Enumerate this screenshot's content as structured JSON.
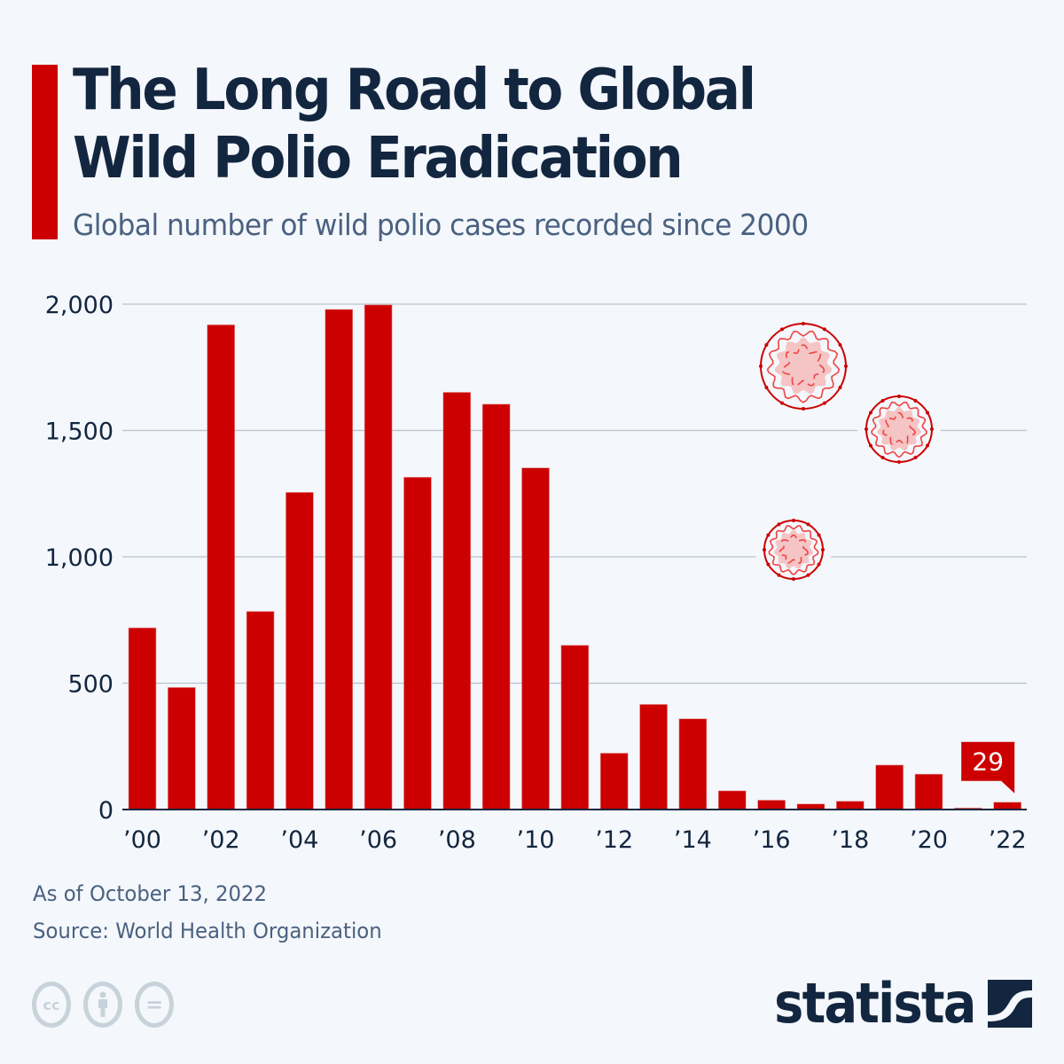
{
  "header": {
    "title_line1": "The Long Road to Global",
    "title_line2": "Wild Polio Eradication",
    "subtitle": "Global number of wild polio cases recorded since 2000"
  },
  "colors": {
    "accent": "#cc0000",
    "bar": "#cc0000",
    "text_dark": "#13263f",
    "text_muted": "#4a6180",
    "grid": "#b9c2cd",
    "background": "#f4f7fb",
    "virus_fill": "#f5c4c4",
    "virus_line": "#ee4444"
  },
  "chart_data": {
    "type": "bar",
    "title": "The Long Road to Global Wild Polio Eradication",
    "subtitle": "Global number of wild polio cases recorded since 2000",
    "xlabel": "",
    "ylabel": "",
    "ylim": [
      0,
      2000
    ],
    "yticks": [
      0,
      500,
      1000,
      1500,
      2000
    ],
    "ytick_labels": [
      "0",
      "500",
      "1,000",
      "1,500",
      "2,000"
    ],
    "grid": true,
    "categories": [
      "2000",
      "2001",
      "2002",
      "2003",
      "2004",
      "2005",
      "2006",
      "2007",
      "2008",
      "2009",
      "2010",
      "2011",
      "2012",
      "2013",
      "2014",
      "2015",
      "2016",
      "2017",
      "2018",
      "2019",
      "2020",
      "2021",
      "2022"
    ],
    "x_tick_labels": [
      "’00",
      "",
      "’02",
      "",
      "’04",
      "",
      "’06",
      "",
      "’08",
      "",
      "’10",
      "",
      "’12",
      "",
      "’14",
      "",
      "’16",
      "",
      "’18",
      "",
      "’20",
      "",
      "’22"
    ],
    "values": [
      719,
      483,
      1918,
      784,
      1255,
      1979,
      1997,
      1315,
      1651,
      1604,
      1352,
      650,
      223,
      416,
      359,
      74,
      37,
      22,
      33,
      176,
      140,
      6,
      29
    ],
    "annotations": [
      {
        "category": "2022",
        "label": "29"
      }
    ],
    "decorations": [
      "virus-illustration",
      "virus-illustration",
      "virus-illustration"
    ]
  },
  "footer": {
    "as_of": "As of October 13, 2022",
    "source": "Source: World Health Organization",
    "license_icons": [
      "cc-icon",
      "attribution-icon",
      "no-derivatives-icon"
    ],
    "license_glyphs": [
      "cc",
      "",
      "="
    ],
    "brand": "statista"
  }
}
